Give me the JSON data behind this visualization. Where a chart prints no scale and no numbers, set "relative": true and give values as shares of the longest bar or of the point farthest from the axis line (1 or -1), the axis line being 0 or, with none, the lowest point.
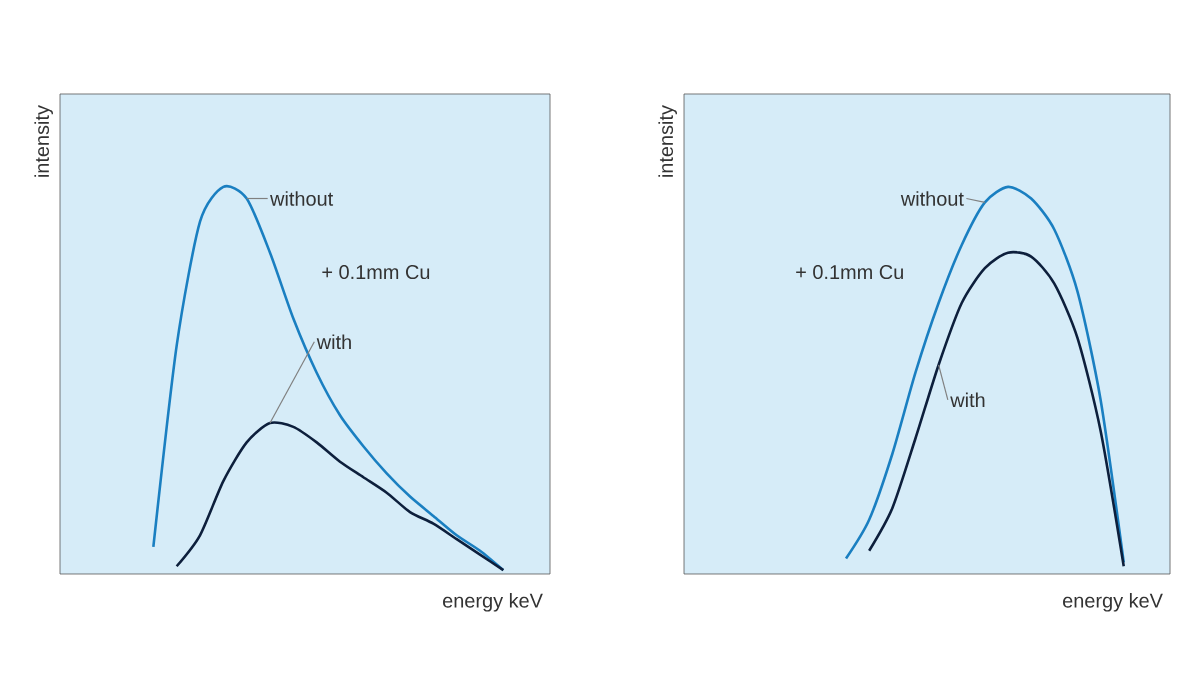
{
  "chart_data": [
    {
      "type": "line",
      "relative": true,
      "xlabel": "energy keV",
      "ylabel": "intensity",
      "annotations": [
        "+ 0.1mm Cu"
      ],
      "categories": [
        null,
        null,
        null,
        null,
        null,
        null,
        null,
        null,
        null,
        null,
        null,
        null,
        null,
        null,
        null,
        null,
        null,
        null,
        null,
        null,
        null,
        null
      ],
      "series": [
        {
          "name": "without",
          "color": "#1a7fc1",
          "values": [
            null,
            null,
            null,
            null,
            0.07,
            0.59,
            0.91,
            1.0,
            0.97,
            0.83,
            0.66,
            0.52,
            0.41,
            0.33,
            0.26,
            0.2,
            0.15,
            0.1,
            0.06,
            0.01,
            null,
            null
          ]
        },
        {
          "name": "with",
          "color": "#0d1f3c",
          "values": [
            null,
            null,
            null,
            null,
            null,
            0.02,
            0.1,
            0.24,
            0.34,
            0.39,
            0.38,
            0.34,
            0.29,
            0.25,
            0.21,
            0.16,
            0.13,
            0.09,
            0.05,
            0.01,
            null,
            null
          ]
        }
      ]
    },
    {
      "type": "line",
      "relative": true,
      "xlabel": "energy keV",
      "ylabel": "intensity",
      "annotations": [
        "+ 0.1mm Cu"
      ],
      "categories": [
        null,
        null,
        null,
        null,
        null,
        null,
        null,
        null,
        null,
        null,
        null,
        null,
        null,
        null,
        null,
        null,
        null,
        null,
        null,
        null,
        null,
        null
      ],
      "series": [
        {
          "name": "without",
          "color": "#1a7fc1",
          "values": [
            null,
            null,
            null,
            null,
            null,
            null,
            null,
            0.04,
            0.14,
            0.31,
            0.52,
            0.7,
            0.85,
            0.96,
            1.0,
            0.97,
            0.89,
            0.73,
            0.45,
            0.03,
            null,
            null
          ]
        },
        {
          "name": "with",
          "color": "#0d1f3c",
          "values": [
            null,
            null,
            null,
            null,
            null,
            null,
            null,
            null,
            0.06,
            0.17,
            0.35,
            0.54,
            0.7,
            0.79,
            0.83,
            0.82,
            0.75,
            0.61,
            0.37,
            0.02,
            null,
            null
          ]
        }
      ]
    }
  ]
}
